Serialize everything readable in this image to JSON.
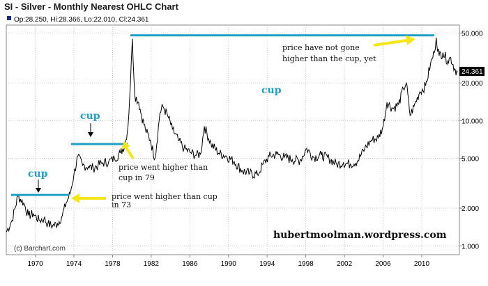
{
  "chart_data": {
    "type": "line",
    "title": "SI - Silver - Monthly Nearest OHLC Chart",
    "ohlc": "Op:28.250, Hi:28.366, Lo:22.010, Cl:24.361",
    "credit": "(c) Barchart.com",
    "last_price": "24.361",
    "yscale": "log",
    "ylim": [
      0.85,
      58
    ],
    "xlim": [
      1967.0,
      2013.9
    ],
    "yticks": [
      {
        "v": 50,
        "label": "50.000"
      },
      {
        "v": 20,
        "label": "20.000"
      },
      {
        "v": 10,
        "label": "10.000"
      },
      {
        "v": 5,
        "label": "5.000"
      },
      {
        "v": 2,
        "label": "2.000"
      },
      {
        "v": 1,
        "label": "1.000"
      }
    ],
    "xticks": [
      {
        "v": 1970,
        "label": "1970"
      },
      {
        "v": 1974,
        "label": "1974"
      },
      {
        "v": 1978,
        "label": "1978"
      },
      {
        "v": 1982,
        "label": "1982"
      },
      {
        "v": 1986,
        "label": "1986"
      },
      {
        "v": 1990,
        "label": "1990"
      },
      {
        "v": 1994,
        "label": "1994"
      },
      {
        "v": 1998,
        "label": "1998"
      },
      {
        "v": 2002,
        "label": "2002"
      },
      {
        "v": 2006,
        "label": "2006"
      },
      {
        "v": 2010,
        "label": "2010"
      }
    ],
    "series": [
      {
        "x": [
          1967.0,
          1967.6,
          1968.2,
          1968.8,
          1969.3,
          1969.8,
          1970.4,
          1970.9,
          1971.3,
          1971.8,
          1972.3,
          1972.8,
          1973.2,
          1973.6,
          1974.0,
          1974.4,
          1974.9,
          1975.5,
          1976.0,
          1976.5,
          1977.0,
          1977.6,
          1978.2,
          1978.8,
          1979.3,
          1979.6,
          1979.85,
          1980.05,
          1980.3,
          1980.7,
          1981.0,
          1981.4,
          1981.9,
          1982.4,
          1982.9,
          1983.2,
          1983.7,
          1984.2,
          1984.8,
          1985.4,
          1986.0,
          1986.6,
          1987.1,
          1987.5,
          1988.2,
          1989.0,
          1989.8,
          1990.6,
          1991.4,
          1992.2,
          1993.0,
          1993.6,
          1994.2,
          1995.0,
          1995.8,
          1996.6,
          1997.4,
          1998.1,
          1998.8,
          1999.6,
          2000.4,
          2001.2,
          2001.9,
          2002.6,
          2003.4,
          2004.1,
          2004.8,
          2005.5,
          2006.0,
          2006.4,
          2007.0,
          2007.6,
          2008.1,
          2008.4,
          2008.8,
          2009.2,
          2009.8,
          2010.4,
          2010.9,
          2011.3,
          2011.5,
          2011.8,
          2012.2,
          2012.7,
          2013.0,
          2013.4,
          2013.7
        ],
        "y": [
          1.29,
          1.6,
          2.5,
          2.2,
          1.75,
          1.8,
          1.6,
          1.65,
          1.5,
          1.45,
          1.5,
          1.75,
          2.2,
          2.6,
          3.7,
          5.2,
          4.4,
          4.3,
          4.2,
          4.4,
          4.6,
          4.7,
          5.0,
          5.5,
          6.5,
          9.0,
          20.0,
          45.0,
          16.0,
          14.0,
          11.0,
          8.5,
          7.0,
          5.0,
          11.5,
          13.0,
          11.0,
          8.5,
          7.0,
          6.0,
          5.6,
          5.3,
          5.4,
          9.0,
          6.5,
          5.5,
          5.2,
          4.7,
          4.0,
          3.8,
          3.7,
          4.5,
          5.2,
          5.4,
          5.1,
          4.9,
          4.8,
          6.0,
          5.1,
          5.3,
          5.0,
          4.5,
          4.6,
          4.5,
          4.8,
          6.0,
          7.0,
          7.3,
          9.0,
          14.0,
          12.5,
          13.5,
          18.0,
          20.0,
          11.0,
          13.0,
          17.0,
          19.0,
          28.0,
          35.0,
          46.0,
          33.0,
          35.0,
          30.0,
          32.0,
          26.0,
          24.361
        ]
      }
    ],
    "levels": [
      {
        "y": 2.55,
        "x0": 1967.5,
        "x1": 1973.5
      },
      {
        "y": 6.5,
        "x0": 1973.7,
        "x1": 1979.6
      },
      {
        "y": 48.0,
        "x0": 1979.85,
        "x1": 2011.3
      }
    ]
  },
  "annotations": {
    "cup_1": "cup",
    "cup_2": "cup",
    "cup_3": "cup",
    "note_73_line1": "price went higher than cup",
    "note_73_line2": "in 73",
    "note_79_line1": "price went higher than",
    "note_79_line2": "cup in 79",
    "note_now_line1": "price have not gone",
    "note_now_line2": "higher than the cup, yet",
    "watermark": "hubertmoolman.wordpress.com"
  },
  "colors": {
    "price": "#000000",
    "cup_line": "#1e9fc6",
    "arrow_yellow": "#f5e619",
    "last_badge": "#000000"
  }
}
